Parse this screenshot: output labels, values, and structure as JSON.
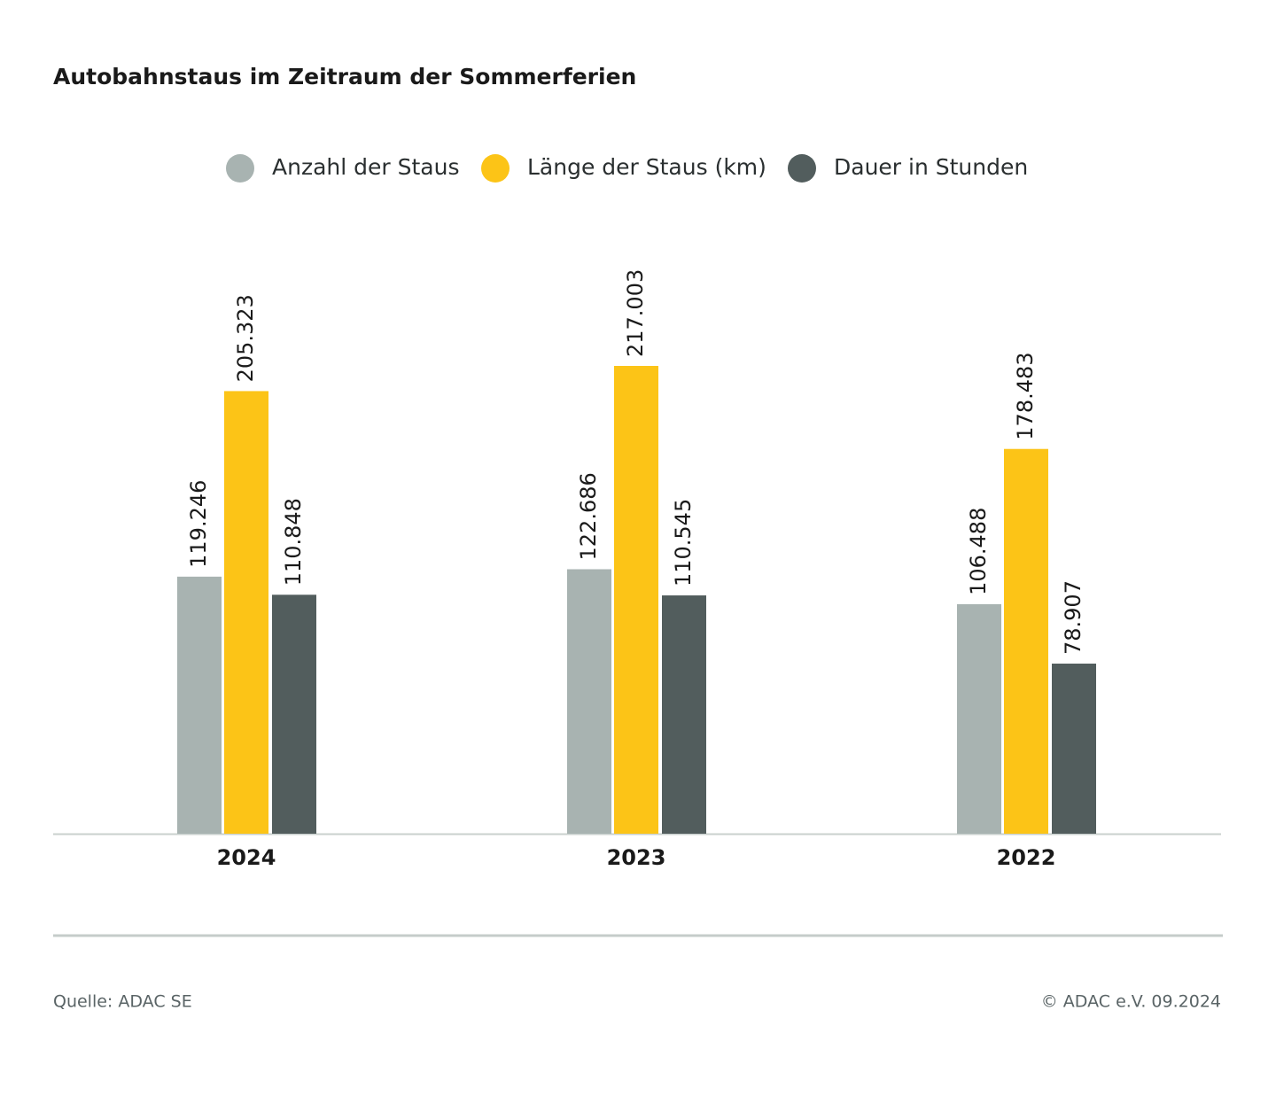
{
  "chart_data": {
    "type": "bar",
    "title": "Autobahnstaus im Zeitraum der Sommerferien",
    "categories": [
      "2024",
      "2023",
      "2022"
    ],
    "series": [
      {
        "name": "Anzahl der Staus",
        "color": "#a8b3b1",
        "values": [
          119246,
          122686,
          106488
        ],
        "value_labels": [
          "119.246",
          "122.686",
          "106.488"
        ]
      },
      {
        "name": "Länge der Staus (km)",
        "color": "#fcc417",
        "values": [
          205323,
          217003,
          178483
        ],
        "value_labels": [
          "205.323",
          "217.003",
          "178.483"
        ]
      },
      {
        "name": "Dauer in Stunden",
        "color": "#525d5d",
        "values": [
          110848,
          110545,
          78907
        ],
        "value_labels": [
          "110.848",
          "110.545",
          "78.907"
        ]
      }
    ],
    "legend": "top",
    "source": "Quelle: ADAC SE",
    "copyright": "© ADAC e.V. 09.2024"
  }
}
